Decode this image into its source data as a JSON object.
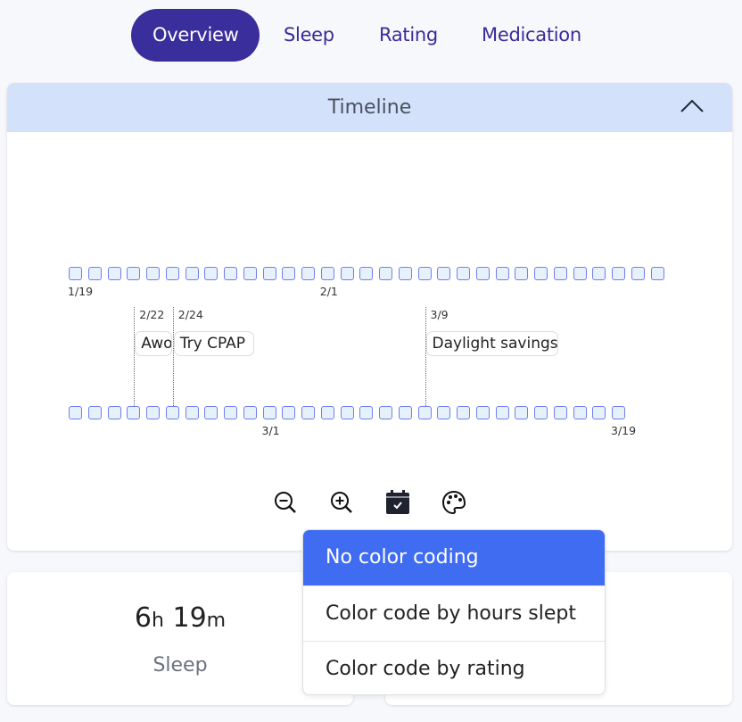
{
  "tabs": [
    {
      "label": "Overview",
      "active": true
    },
    {
      "label": "Sleep",
      "active": false
    },
    {
      "label": "Rating",
      "active": false
    },
    {
      "label": "Medication",
      "active": false
    }
  ],
  "timeline": {
    "title": "Timeline",
    "collapse_icon": "chevron-up-icon",
    "rows": [
      {
        "day_count": 31,
        "labels": [
          {
            "index": 0,
            "text": "1/19"
          },
          {
            "index": 13,
            "text": "2/1"
          }
        ]
      },
      {
        "day_count": 29,
        "labels": [
          {
            "index": 10,
            "text": "3/1"
          },
          {
            "index": 28,
            "text": "3/19"
          }
        ]
      }
    ],
    "events": [
      {
        "date": "2/22",
        "day_index": 3,
        "label": "Awoke"
      },
      {
        "date": "2/24",
        "day_index": 5,
        "label": "Try CPAP"
      },
      {
        "date": "3/9",
        "day_index": 18,
        "label": "Daylight savings"
      }
    ],
    "controls": [
      "zoom-out-icon",
      "zoom-in-icon",
      "calendar-check-icon",
      "palette-icon"
    ],
    "day_fill": "#e6f1fc",
    "day_border": "#6f7ff0"
  },
  "stats": {
    "sleep": {
      "hours": "6",
      "h_unit": "h",
      "minutes": "19",
      "m_unit": "m",
      "label": "Sleep"
    }
  },
  "color_menu": {
    "items": [
      "No color coding",
      "Color code by hours slept",
      "Color code by rating"
    ],
    "selected": 0,
    "selected_color": "#406cf2"
  },
  "colors": {
    "accent": "#3a2d9c",
    "header_bg": "#d4e1fa"
  }
}
